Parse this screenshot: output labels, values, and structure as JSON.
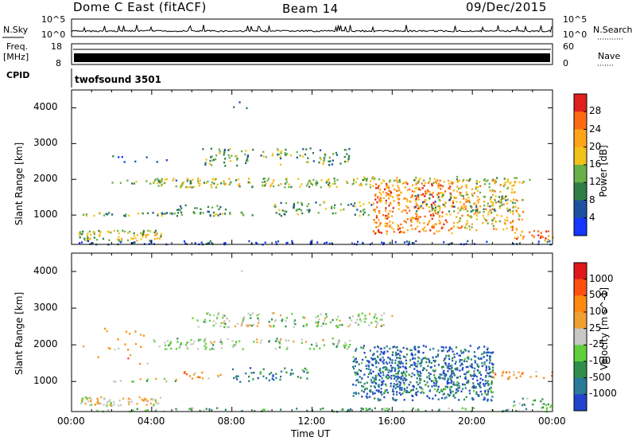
{
  "header": {
    "station": "Dome C East (fitACF)",
    "beam": "Beam 14",
    "date": "09/Dec/2015"
  },
  "strips": {
    "nsky_label": "N.Sky",
    "nsky_top": "10^5",
    "nsky_bottom": "10^0",
    "nsearch_label": "N.Search",
    "nsearch_top": "10^5",
    "nsearch_bottom": "10^0",
    "freq_label": "Freq.",
    "freq_unit": "[MHz]",
    "freq_top": "18",
    "freq_bottom": "8",
    "nave_label": "Nave",
    "nave_top": "60",
    "nave_bottom": "0",
    "cpid_label": "CPID",
    "cpid_value": "twofsound 3501"
  },
  "chart_data": [
    {
      "type": "heatmap",
      "name": "power",
      "ylabel": "Slant Range [km]",
      "colorbar_label": "Power [dB]",
      "colorbar_ticks": [
        "28",
        "24",
        "20",
        "16",
        "12",
        "8",
        "4"
      ],
      "colors": [
        "#1436ff",
        "#1e52a0",
        "#2f7e46",
        "#6ab04a",
        "#f2c21a",
        "#ffa418",
        "#ff6a12",
        "#e0201a"
      ],
      "xlim": [
        "00:00",
        "24:00"
      ],
      "ylim": [
        180,
        4500
      ],
      "x_ticks": [
        "00:00",
        "04:00",
        "08:00",
        "12:00",
        "16:00",
        "20:00",
        "00:00"
      ],
      "y_ticks": [
        1000,
        2000,
        3000,
        4000
      ]
    },
    {
      "type": "heatmap",
      "name": "velocity",
      "ylabel": "Slant Range [km]",
      "colorbar_label": "Velocity [m s^-1]",
      "colorbar_ticks": [
        "1000",
        "500",
        "100",
        "25",
        "-25",
        "-100",
        "-500",
        "-1000"
      ],
      "colors": [
        "#2244cc",
        "#2a7a9a",
        "#2f8f4a",
        "#5fcf3a",
        "#c8c8c4",
        "#f0a030",
        "#ff8a10",
        "#ff5010",
        "#e01818"
      ],
      "xlim": [
        "00:00",
        "24:00"
      ],
      "ylim": [
        180,
        4500
      ],
      "x_ticks": [
        "00:00",
        "04:00",
        "08:00",
        "12:00",
        "16:00",
        "20:00",
        "00:00"
      ],
      "y_ticks": [
        1000,
        2000,
        3000,
        4000
      ],
      "xlabel": "Time UT"
    }
  ]
}
